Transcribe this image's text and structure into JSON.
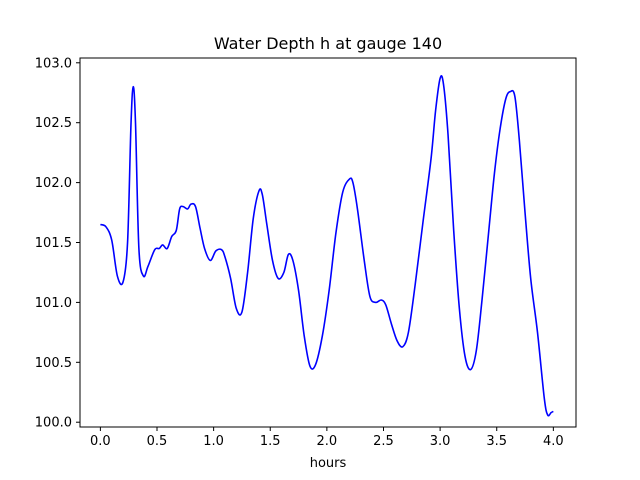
{
  "chart_data": {
    "type": "line",
    "title": "Water Depth h at gauge 140",
    "xlabel": "hours",
    "ylabel": "",
    "xlim": [
      -0.18,
      4.2
    ],
    "ylim": [
      99.96,
      103.04
    ],
    "grid": false,
    "x_ticks": [
      0.0,
      0.5,
      1.0,
      1.5,
      2.0,
      2.5,
      3.0,
      3.5,
      4.0
    ],
    "x_tick_labels": [
      "0.0",
      "0.5",
      "1.0",
      "1.5",
      "2.0",
      "2.5",
      "3.0",
      "3.5",
      "4.0"
    ],
    "y_ticks": [
      100.0,
      100.5,
      101.0,
      101.5,
      102.0,
      102.5,
      103.0
    ],
    "y_tick_labels": [
      "100.0",
      "100.5",
      "101.0",
      "101.5",
      "102.0",
      "102.5",
      "103.0"
    ],
    "series": [
      {
        "color": "#0000ff",
        "x": [
          0.0,
          0.05,
          0.1,
          0.15,
          0.2,
          0.24,
          0.27,
          0.29,
          0.31,
          0.34,
          0.38,
          0.42,
          0.48,
          0.52,
          0.55,
          0.59,
          0.63,
          0.67,
          0.7,
          0.73,
          0.77,
          0.8,
          0.84,
          0.88,
          0.92,
          0.97,
          1.02,
          1.07,
          1.1,
          1.15,
          1.2,
          1.25,
          1.3,
          1.35,
          1.4,
          1.43,
          1.47,
          1.52,
          1.57,
          1.62,
          1.66,
          1.7,
          1.75,
          1.8,
          1.85,
          1.9,
          1.96,
          2.02,
          2.08,
          2.14,
          2.2,
          2.23,
          2.27,
          2.33,
          2.38,
          2.43,
          2.48,
          2.52,
          2.57,
          2.62,
          2.67,
          2.72,
          2.78,
          2.85,
          2.92,
          2.96,
          3.0,
          3.03,
          3.07,
          3.12,
          3.17,
          3.22,
          3.27,
          3.32,
          3.37,
          3.43,
          3.48,
          3.53,
          3.58,
          3.62,
          3.66,
          3.7,
          3.75,
          3.8,
          3.86,
          3.92,
          3.95,
          3.98,
          4.0
        ],
        "y": [
          101.65,
          101.63,
          101.52,
          101.22,
          101.17,
          101.5,
          102.48,
          102.8,
          102.5,
          101.45,
          101.22,
          101.3,
          101.44,
          101.45,
          101.48,
          101.45,
          101.55,
          101.6,
          101.78,
          101.8,
          101.78,
          101.82,
          101.8,
          101.62,
          101.45,
          101.35,
          101.43,
          101.44,
          101.38,
          101.2,
          100.95,
          100.92,
          101.25,
          101.7,
          101.93,
          101.9,
          101.65,
          101.35,
          101.2,
          101.25,
          101.4,
          101.35,
          101.1,
          100.72,
          100.47,
          100.48,
          100.72,
          101.1,
          101.58,
          101.92,
          102.03,
          102.0,
          101.78,
          101.35,
          101.05,
          101.0,
          101.02,
          100.98,
          100.82,
          100.68,
          100.63,
          100.75,
          101.15,
          101.68,
          102.2,
          102.6,
          102.87,
          102.82,
          102.4,
          101.6,
          100.95,
          100.55,
          100.44,
          100.6,
          101.02,
          101.6,
          102.08,
          102.45,
          102.7,
          102.76,
          102.72,
          102.35,
          101.75,
          101.2,
          100.75,
          100.2,
          100.06,
          100.08,
          100.09
        ]
      }
    ]
  }
}
